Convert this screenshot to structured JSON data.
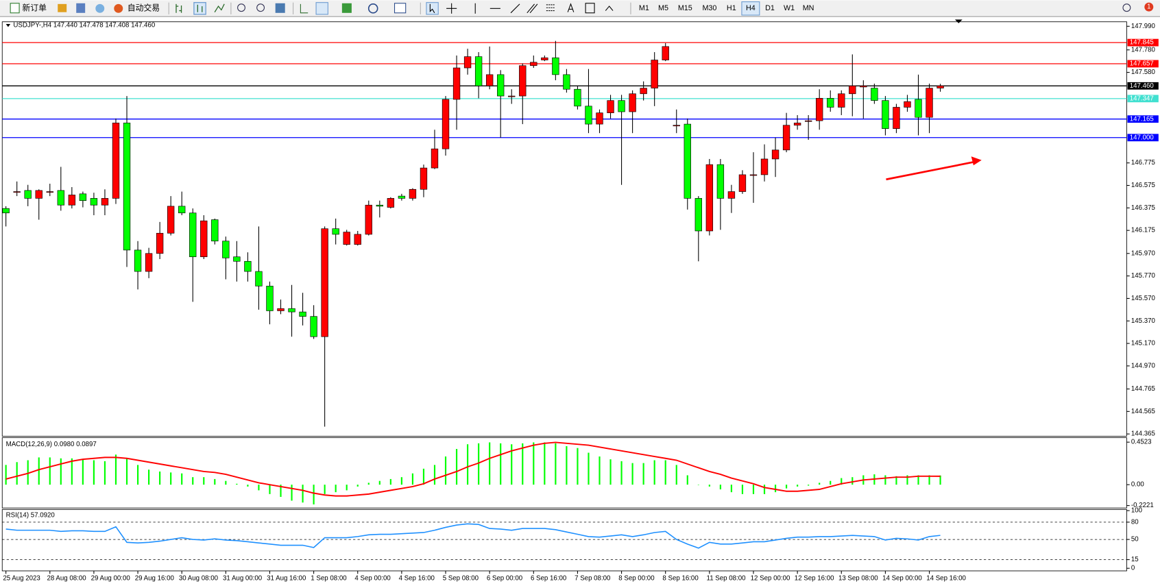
{
  "toolbar": {
    "new_order": "新订单",
    "auto_trade": "自动交易",
    "timeframes": [
      "M1",
      "M5",
      "M15",
      "M30",
      "H1",
      "H4",
      "D1",
      "W1",
      "MN"
    ],
    "active_timeframe": "H4",
    "notifications": "1"
  },
  "chart_data": [
    {
      "type": "candlestick",
      "title": "USDJPY-,H4  147.440 147.478 147.408 147.460",
      "categories": [
        "25 Aug 2023",
        null,
        null,
        null,
        "28 Aug 08:00",
        null,
        null,
        null,
        "29 Aug 00:00",
        null,
        null,
        null,
        "29 Aug 16:00",
        null,
        null,
        null,
        "30 Aug 08:00",
        null,
        null,
        null,
        "31 Aug 00:00",
        null,
        null,
        null,
        "31 Aug 16:00",
        null,
        null,
        null,
        "1 Sep 08:00",
        null,
        null,
        null,
        "4 Sep 00:00",
        null,
        null,
        null,
        "4 Sep 16:00",
        null,
        null,
        null,
        "5 Sep 08:00",
        null,
        null,
        null,
        "6 Sep 00:00",
        null,
        null,
        null,
        "6 Sep 16:00",
        null,
        null,
        null,
        "7 Sep 08:00",
        null,
        null,
        null,
        "8 Sep 00:00",
        null,
        null,
        null,
        "8 Sep 16:00",
        null,
        null,
        null,
        "11 Sep 08:00",
        null,
        null,
        null,
        "12 Sep 00:00",
        null,
        null,
        null,
        "12 Sep 16:00",
        null,
        null,
        null,
        "13 Sep 08:00",
        null,
        null,
        null,
        "14 Sep 00:00",
        null,
        null,
        null,
        "14 Sep 16:00",
        null
      ],
      "open": [
        146.37,
        146.52,
        146.53,
        146.46,
        146.52,
        146.53,
        146.4,
        146.5,
        146.46,
        146.4,
        146.46,
        147.13,
        146.0,
        145.81,
        145.97,
        146.15,
        146.39,
        146.33,
        145.94,
        146.27,
        146.08,
        145.94,
        145.9,
        145.81,
        145.68,
        145.46,
        145.48,
        145.45,
        145.41,
        145.23,
        146.19,
        146.05,
        146.05,
        146.14,
        146.4,
        146.38,
        146.48,
        146.46,
        146.54,
        146.73,
        146.9,
        147.34,
        147.62,
        147.72,
        147.46,
        147.56,
        147.37,
        147.37,
        147.64,
        147.69,
        147.71,
        147.56,
        147.43,
        147.28,
        147.12,
        147.22,
        147.33,
        147.23,
        147.39,
        147.44,
        147.69,
        147.11,
        147.12,
        146.46,
        146.17,
        146.76,
        146.46,
        146.52,
        146.67,
        146.67,
        146.81,
        146.89,
        147.11,
        147.15,
        147.15,
        147.35,
        147.27,
        147.39,
        147.45,
        147.44,
        147.33,
        147.08,
        147.27,
        147.34,
        147.18,
        147.44
      ],
      "high": [
        146.39,
        146.61,
        146.58,
        146.54,
        146.59,
        146.74,
        146.56,
        146.52,
        146.51,
        146.54,
        147.17,
        147.37,
        146.08,
        146.02,
        146.25,
        146.48,
        146.52,
        146.37,
        146.31,
        146.28,
        146.12,
        146.08,
        145.98,
        146.21,
        145.72,
        145.56,
        145.69,
        145.62,
        145.51,
        146.21,
        146.28,
        146.18,
        146.17,
        146.44,
        146.44,
        146.47,
        146.5,
        146.55,
        146.76,
        147.07,
        147.37,
        147.73,
        147.79,
        147.76,
        147.81,
        147.6,
        147.43,
        147.66,
        147.73,
        147.73,
        147.86,
        147.61,
        147.46,
        147.61,
        147.25,
        147.38,
        147.38,
        147.42,
        147.5,
        147.76,
        147.84,
        147.25,
        147.17,
        146.48,
        146.81,
        146.81,
        146.58,
        146.71,
        146.87,
        146.94,
        147.0,
        147.22,
        147.2,
        147.2,
        147.43,
        147.42,
        147.42,
        147.74,
        147.51,
        147.48,
        147.37,
        147.3,
        147.38,
        147.56,
        147.48,
        147.478
      ],
      "low": [
        146.21,
        146.48,
        146.39,
        146.27,
        146.48,
        146.35,
        146.37,
        146.38,
        146.31,
        146.31,
        146.41,
        145.85,
        145.65,
        145.75,
        145.92,
        146.13,
        146.31,
        145.54,
        145.92,
        146.05,
        145.74,
        145.72,
        145.72,
        145.47,
        145.34,
        145.43,
        145.23,
        145.33,
        145.21,
        144.43,
        146.05,
        146.04,
        146.04,
        146.13,
        146.29,
        146.37,
        146.44,
        146.44,
        146.47,
        146.72,
        146.84,
        147.07,
        147.56,
        147.35,
        147.43,
        147.0,
        147.3,
        147.12,
        147.62,
        147.68,
        147.51,
        147.4,
        147.25,
        147.04,
        147.04,
        147.17,
        146.58,
        147.04,
        147.33,
        147.28,
        147.68,
        147.04,
        146.36,
        145.9,
        146.13,
        146.18,
        146.33,
        146.5,
        146.42,
        146.61,
        146.65,
        146.87,
        147.07,
        146.98,
        147.07,
        147.23,
        147.2,
        147.19,
        147.17,
        147.3,
        147.02,
        147.04,
        147.23,
        147.02,
        147.04,
        147.408
      ],
      "close": [
        146.33,
        146.52,
        146.46,
        146.53,
        146.52,
        146.4,
        146.49,
        146.44,
        146.4,
        146.46,
        147.13,
        146.0,
        145.81,
        145.97,
        146.15,
        146.39,
        146.33,
        145.94,
        146.26,
        146.08,
        145.93,
        145.9,
        145.81,
        145.68,
        145.46,
        145.48,
        145.45,
        145.41,
        145.23,
        146.19,
        146.14,
        146.16,
        146.14,
        146.4,
        146.39,
        146.46,
        146.46,
        146.54,
        146.73,
        146.9,
        147.34,
        147.62,
        147.72,
        147.46,
        147.56,
        147.37,
        147.37,
        147.64,
        147.67,
        147.71,
        147.56,
        147.43,
        147.28,
        147.12,
        147.22,
        147.33,
        147.23,
        147.39,
        147.44,
        147.69,
        147.81,
        147.11,
        146.46,
        146.17,
        146.76,
        146.46,
        146.52,
        146.67,
        146.67,
        146.81,
        146.89,
        147.11,
        147.13,
        147.15,
        147.35,
        147.27,
        147.39,
        147.46,
        147.46,
        147.33,
        147.08,
        147.27,
        147.32,
        147.18,
        147.44,
        147.46
      ],
      "up_color": "#ff0000",
      "down_color": "#00ff00",
      "ylim": [
        144.345,
        148.03
      ],
      "yticks": [
        {
          "value": 147.99,
          "label": "147.990"
        },
        {
          "value": 147.78,
          "label": "147.780"
        },
        {
          "value": 147.58,
          "label": "147.580"
        },
        146.775,
        146.575,
        146.375,
        146.175,
        {
          "value": 145.97,
          "label": "145.970"
        },
        {
          "value": 145.77,
          "label": "145.770"
        },
        {
          "value": 145.57,
          "label": "145.570"
        },
        {
          "value": 145.37,
          "label": "145.370"
        },
        {
          "value": 145.17,
          "label": "145.170"
        },
        {
          "value": 144.97,
          "label": "144.970"
        },
        144.765,
        144.565,
        144.365
      ],
      "levels": [
        {
          "value": 147.845,
          "color": "#ff0000"
        },
        {
          "value": 147.657,
          "color": "#ff0000"
        },
        {
          "value": 147.46,
          "label": "147.460",
          "color": "#000000"
        },
        {
          "value": 147.347,
          "color": "#40e0d0"
        },
        {
          "value": 147.165,
          "color": "#0000ff"
        },
        {
          "value": 147.0,
          "label": "147.000",
          "color": "#0000ff"
        }
      ]
    },
    {
      "type": "macd",
      "title": "MACD(12,26,9) 0.0980 0.0897",
      "values": [
        0.21,
        0.24,
        0.26,
        0.29,
        0.29,
        0.28,
        0.28,
        0.27,
        0.26,
        0.25,
        0.32,
        0.28,
        0.21,
        0.16,
        0.14,
        0.13,
        0.12,
        0.08,
        0.08,
        0.06,
        0.04,
        0.01,
        -0.02,
        -0.06,
        -0.1,
        -0.13,
        -0.17,
        -0.19,
        -0.21,
        -0.1,
        -0.08,
        -0.06,
        -0.02,
        0.02,
        0.04,
        0.06,
        0.08,
        0.12,
        0.17,
        0.21,
        0.3,
        0.38,
        0.43,
        0.44,
        0.45,
        0.44,
        0.43,
        0.44,
        0.45,
        0.45,
        0.44,
        0.41,
        0.39,
        0.34,
        0.3,
        0.27,
        0.25,
        0.23,
        0.23,
        0.26,
        0.26,
        0.21,
        0.1,
        0.0,
        -0.02,
        -0.05,
        -0.08,
        -0.1,
        -0.1,
        -0.1,
        -0.08,
        -0.04,
        -0.02,
        -0.01,
        0.02,
        0.04,
        0.07,
        0.08,
        0.1,
        0.11,
        0.1,
        0.09,
        0.1,
        0.1,
        0.1,
        0.098
      ],
      "color": "#00ff00",
      "signal": [
        0.06,
        0.09,
        0.12,
        0.16,
        0.19,
        0.22,
        0.25,
        0.27,
        0.28,
        0.29,
        0.29,
        0.28,
        0.26,
        0.24,
        0.22,
        0.2,
        0.18,
        0.16,
        0.14,
        0.13,
        0.11,
        0.08,
        0.05,
        0.02,
        0.0,
        -0.02,
        -0.04,
        -0.06,
        -0.09,
        -0.11,
        -0.12,
        -0.12,
        -0.11,
        -0.1,
        -0.08,
        -0.06,
        -0.04,
        -0.02,
        0.01,
        0.06,
        0.1,
        0.14,
        0.19,
        0.23,
        0.28,
        0.32,
        0.36,
        0.39,
        0.42,
        0.44,
        0.45,
        0.44,
        0.43,
        0.42,
        0.4,
        0.38,
        0.36,
        0.34,
        0.32,
        0.3,
        0.28,
        0.26,
        0.22,
        0.18,
        0.14,
        0.11,
        0.07,
        0.04,
        0.01,
        -0.03,
        -0.05,
        -0.07,
        -0.07,
        -0.06,
        -0.05,
        -0.02,
        0.01,
        0.03,
        0.05,
        0.06,
        0.07,
        0.08,
        0.08,
        0.09,
        0.09,
        0.0897
      ],
      "signal_color": "#ff0000",
      "ylim": [
        -0.248,
        0.5
      ],
      "yticks": [
        0.4523,
        {
          "value": 0,
          "label": "0.00"
        },
        -0.2221
      ]
    },
    {
      "type": "line",
      "title": "RSI(14) 57.0920",
      "values": [
        68,
        66,
        66,
        66,
        66,
        64,
        65,
        65,
        64,
        64,
        72,
        45,
        44,
        45,
        47,
        50,
        53,
        50,
        49,
        51,
        49,
        48,
        46,
        44,
        42,
        40,
        40,
        40,
        36,
        53,
        53,
        53,
        55,
        58,
        59,
        59,
        60,
        61,
        62,
        66,
        71,
        75,
        77,
        76,
        69,
        68,
        66,
        69,
        69,
        69,
        67,
        63,
        59,
        55,
        54,
        56,
        58,
        55,
        58,
        62,
        64,
        50,
        42,
        35,
        45,
        42,
        42,
        44,
        46,
        46,
        49,
        52,
        54,
        54,
        55,
        55,
        56,
        57,
        56,
        55,
        49,
        52,
        51,
        49,
        55,
        57.09
      ],
      "color": "#1e90ff",
      "ylim": [
        -4.5,
        102
      ],
      "yticks": [
        100,
        80,
        50,
        15,
        0
      ],
      "levels": [
        80,
        50,
        15
      ]
    }
  ]
}
